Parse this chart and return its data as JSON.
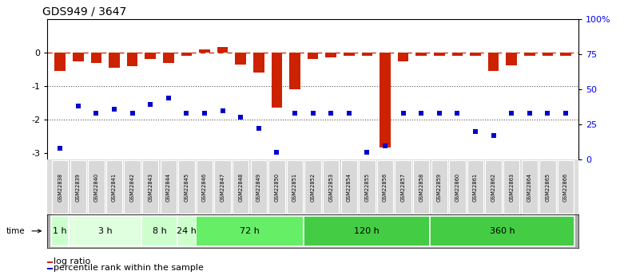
{
  "title": "GDS949 / 3647",
  "samples": [
    "GSM22838",
    "GSM22839",
    "GSM22840",
    "GSM22841",
    "GSM22842",
    "GSM22843",
    "GSM22844",
    "GSM22845",
    "GSM22846",
    "GSM22847",
    "GSM22848",
    "GSM22849",
    "GSM22850",
    "GSM22851",
    "GSM22852",
    "GSM22853",
    "GSM22854",
    "GSM22855",
    "GSM22856",
    "GSM22857",
    "GSM22858",
    "GSM22859",
    "GSM22860",
    "GSM22861",
    "GSM22862",
    "GSM22863",
    "GSM22864",
    "GSM22865",
    "GSM22866"
  ],
  "log_ratio": [
    -0.55,
    -0.25,
    -0.3,
    -0.45,
    -0.4,
    -0.2,
    -0.3,
    -0.1,
    0.1,
    0.18,
    -0.35,
    -0.6,
    -1.65,
    -1.1,
    -0.2,
    -0.15,
    -0.1,
    -0.1,
    -2.85,
    -0.25,
    -0.1,
    -0.1,
    -0.1,
    -0.1,
    -0.55,
    -0.38,
    -0.1,
    -0.1,
    -0.1
  ],
  "percentile_rank": [
    8,
    38,
    33,
    36,
    33,
    39,
    44,
    33,
    33,
    35,
    30,
    22,
    5,
    33,
    33,
    33,
    33,
    5,
    10,
    33,
    33,
    33,
    33,
    20,
    17,
    33,
    33,
    33,
    33
  ],
  "time_groups": [
    {
      "label": "1 h",
      "start": 0,
      "end": 1,
      "color": "#ccffcc"
    },
    {
      "label": "3 h",
      "start": 1,
      "end": 5,
      "color": "#dfffdf"
    },
    {
      "label": "8 h",
      "start": 5,
      "end": 7,
      "color": "#ccffcc"
    },
    {
      "label": "24 h",
      "start": 7,
      "end": 8,
      "color": "#ccffcc"
    },
    {
      "label": "72 h",
      "start": 8,
      "end": 14,
      "color": "#66ee66"
    },
    {
      "label": "120 h",
      "start": 14,
      "end": 21,
      "color": "#44cc44"
    },
    {
      "label": "360 h",
      "start": 21,
      "end": 29,
      "color": "#44cc44"
    }
  ],
  "ylim_left": [
    -3.2,
    1.0
  ],
  "ylim_right": [
    0,
    100
  ],
  "yticks_left": [
    0,
    -1,
    -2,
    -3
  ],
  "yticks_right": [
    0,
    25,
    50,
    75,
    100
  ],
  "bar_color": "#cc2200",
  "scatter_color": "#0000cc",
  "bg_color": "#ffffff",
  "dashed_line_color": "#cc2200",
  "dotted_line_color": "#555555",
  "legend_items": [
    "log ratio",
    "percentile rank within the sample"
  ]
}
